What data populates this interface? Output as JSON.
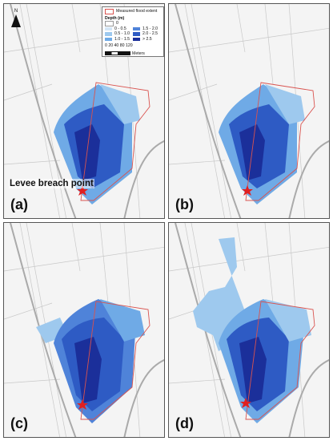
{
  "colors": {
    "flood_outline": "#d9534f",
    "depth_0": "#ffffff",
    "depth_0_05": "#d4e6f6",
    "depth_05_10": "#9ec9ee",
    "depth_10_15": "#6faae6",
    "depth_15_20": "#4f83d9",
    "depth_20_25": "#2e5bc4",
    "depth_gt25": "#1b2f9a",
    "breach_star": "#e02020"
  },
  "legend": {
    "measured_extent": "Measured flood extent",
    "depth_title": "Depth (m)",
    "classes": [
      {
        "label": "0",
        "color": "#ffffff"
      },
      {
        "label": "0 - 0.5",
        "color": "#d4e6f6"
      },
      {
        "label": "0.5 - 1.0",
        "color": "#9ec9ee"
      },
      {
        "label": "1.0 - 1.5",
        "color": "#6faae6"
      },
      {
        "label": "1.5 - 2.0",
        "color": "#4f83d9"
      },
      {
        "label": "2.0 - 2.5",
        "color": "#2e5bc4"
      },
      {
        "label": "> 2.5",
        "color": "#1b2f9a"
      }
    ],
    "scale_ticks": "0  20 40     80       120",
    "scale_unit": "Meters"
  },
  "north_label": "N",
  "breach_label": "Levee breach point",
  "panels": [
    {
      "label": "(a)"
    },
    {
      "label": "(b)"
    },
    {
      "label": "(c)"
    },
    {
      "label": "(d)"
    }
  ]
}
